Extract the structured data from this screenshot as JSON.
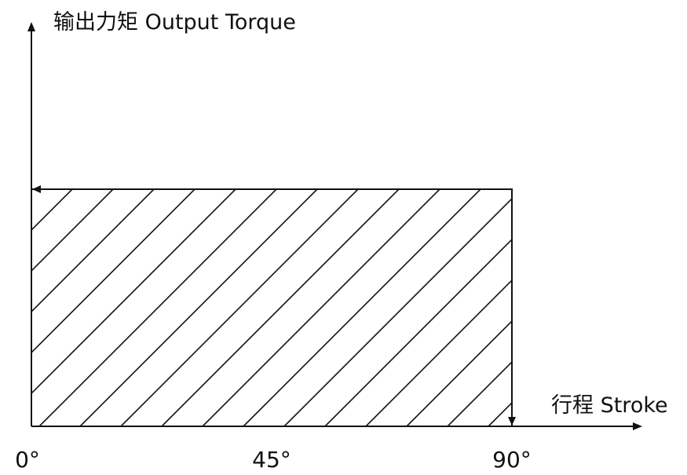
{
  "chart_data": {
    "type": "area",
    "ylabel": "输出力矩 Output Torque",
    "xlabel": "行程 Stroke",
    "x_ticks": [
      "0°",
      "45°",
      "90°"
    ],
    "xlim": [
      0,
      90
    ],
    "series": [
      {
        "x": [
          0,
          90
        ],
        "y": [
          1,
          1
        ],
        "fill": "hatched"
      }
    ],
    "grid": false,
    "legend": "none"
  },
  "colors": {
    "ink": "#111111",
    "background": "#ffffff"
  }
}
